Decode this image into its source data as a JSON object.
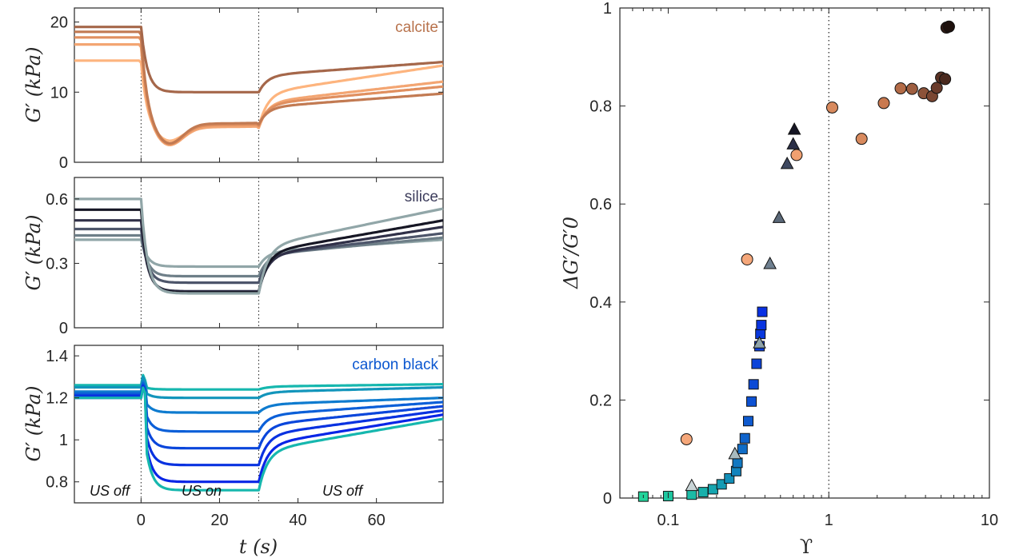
{
  "colors": {
    "calcite": [
      "#FDB47E",
      "#F3A572",
      "#E08F5F",
      "#C27A52",
      "#A5674A"
    ],
    "silice": [
      "#91A6A8",
      "#6E7F88",
      "#4D556A",
      "#303048",
      "#161624"
    ],
    "carbon": [
      "#16B7AE",
      "#1295BB",
      "#0E7BCF",
      "#0B5FD8",
      "#0A46DB",
      "#0932E0",
      "#0825E6"
    ],
    "calcite_title": "#B8734D",
    "silice_title": "#3D3D5C",
    "carbon_title": "#0B57D0"
  },
  "chart_data": [
    {
      "type": "line",
      "panel": "calcite",
      "title": "calcite",
      "ylabel": "G′ (kPa)",
      "xlim": [
        -17,
        77
      ],
      "ylim": [
        0,
        22
      ],
      "yticks": [
        0,
        10,
        20
      ],
      "xticks": [
        0,
        20,
        40,
        60
      ],
      "series": [
        {
          "pre": 14.5,
          "on": 5.0,
          "post_start": 5.2,
          "post_end": 13.8
        },
        {
          "pre": 16.8,
          "on": 4.9,
          "post_start": 5.1,
          "post_end": 11.5
        },
        {
          "pre": 17.8,
          "on": 5.2,
          "post_start": 5.4,
          "post_end": 10.8
        },
        {
          "pre": 18.6,
          "on": 5.4,
          "post_start": 5.6,
          "post_end": 9.8
        },
        {
          "pre": 19.3,
          "on": 10.0,
          "post_start": 10.2,
          "post_end": 14.3
        }
      ]
    },
    {
      "type": "line",
      "panel": "silice",
      "title": "silice",
      "ylabel": "G′ (kPa)",
      "xlim": [
        -17,
        77
      ],
      "ylim": [
        0,
        0.7
      ],
      "yticks": [
        "0",
        "0.3",
        "0.6"
      ],
      "series": [
        {
          "pre": 0.41,
          "on": 0.285,
          "post_end": 0.41
        },
        {
          "pre": 0.43,
          "on": 0.24,
          "post_end": 0.42
        },
        {
          "pre": 0.46,
          "on": 0.21,
          "post_end": 0.44
        },
        {
          "pre": 0.5,
          "on": 0.17,
          "post_end": 0.47
        },
        {
          "pre": 0.55,
          "on": 0.165,
          "post_end": 0.5
        },
        {
          "pre": 0.6,
          "on": 0.16,
          "post_end": 0.555
        }
      ]
    },
    {
      "type": "line",
      "panel": "carbon black",
      "title": "carbon black",
      "ylabel": "G′ (kPa)",
      "xlabel": "t (s)",
      "xlim": [
        -17,
        77
      ],
      "ylim": [
        0.7,
        1.45
      ],
      "yticks": [
        "0.8",
        "1",
        "1.2",
        "1.4"
      ],
      "xticks": [
        "0",
        "20",
        "40",
        "60"
      ],
      "annotations": [
        "US off",
        "US on",
        "US off"
      ],
      "series": [
        {
          "pre": 1.26,
          "on": 1.24,
          "post_end": 1.265
        },
        {
          "pre": 1.25,
          "on": 1.2,
          "post_end": 1.25
        },
        {
          "pre": 1.23,
          "on": 1.13,
          "post_end": 1.2
        },
        {
          "pre": 1.22,
          "on": 1.04,
          "post_end": 1.18
        },
        {
          "pre": 1.21,
          "on": 0.96,
          "post_end": 1.16
        },
        {
          "pre": 1.21,
          "on": 0.88,
          "post_end": 1.14
        },
        {
          "pre": 1.2,
          "on": 0.8,
          "post_end": 1.12
        },
        {
          "pre": 1.2,
          "on": 0.76,
          "post_end": 1.1
        }
      ]
    },
    {
      "type": "scatter",
      "panel": "master",
      "ylabel": "ΔG′/G′0",
      "xlabel": "ϒ",
      "xscale": "log",
      "xlim": [
        0.05,
        10
      ],
      "ylim": [
        0,
        1
      ],
      "yticks": [
        "0",
        "0.2",
        "0.4",
        "0.6",
        "0.8",
        "1"
      ],
      "xticks": [
        "0.1",
        "1",
        "10"
      ],
      "vline": 1,
      "circles": [
        {
          "x": 0.13,
          "y": 0.12,
          "c": "#F5A77A"
        },
        {
          "x": 0.31,
          "y": 0.487,
          "c": "#F5A77A"
        },
        {
          "x": 0.63,
          "y": 0.7,
          "c": "#F0A070"
        },
        {
          "x": 1.05,
          "y": 0.797,
          "c": "#D88A5E"
        },
        {
          "x": 1.6,
          "y": 0.733,
          "c": "#D88A5E"
        },
        {
          "x": 2.2,
          "y": 0.806,
          "c": "#C9794F"
        },
        {
          "x": 2.8,
          "y": 0.836,
          "c": "#B36B47"
        },
        {
          "x": 3.3,
          "y": 0.835,
          "c": "#9E5E40"
        },
        {
          "x": 3.9,
          "y": 0.826,
          "c": "#8C5239"
        },
        {
          "x": 4.4,
          "y": 0.82,
          "c": "#7A4632"
        },
        {
          "x": 4.7,
          "y": 0.837,
          "c": "#6A3B2B"
        },
        {
          "x": 5.0,
          "y": 0.858,
          "c": "#5A3224"
        },
        {
          "x": 5.3,
          "y": 0.855,
          "c": "#4A291E"
        },
        {
          "x": 5.4,
          "y": 0.96,
          "c": "#2F1A14"
        },
        {
          "x": 5.6,
          "y": 0.962,
          "c": "#1E110D"
        }
      ],
      "triangles": [
        {
          "x": 0.14,
          "y": 0.025,
          "c": "#C8D4D6"
        },
        {
          "x": 0.26,
          "y": 0.09,
          "c": "#A8BABE"
        },
        {
          "x": 0.37,
          "y": 0.316,
          "c": "#8FA3A8"
        },
        {
          "x": 0.43,
          "y": 0.478,
          "c": "#6F8090"
        },
        {
          "x": 0.49,
          "y": 0.572,
          "c": "#5A6878"
        },
        {
          "x": 0.55,
          "y": 0.682,
          "c": "#3E4860"
        },
        {
          "x": 0.6,
          "y": 0.722,
          "c": "#2B2F48"
        },
        {
          "x": 0.61,
          "y": 0.752,
          "c": "#161624"
        }
      ],
      "squares": [
        {
          "x": 0.07,
          "y": 0.003,
          "c": "#22D39A"
        },
        {
          "x": 0.1,
          "y": 0.004,
          "c": "#1EC7A0"
        },
        {
          "x": 0.14,
          "y": 0.007,
          "c": "#1BBBA6"
        },
        {
          "x": 0.165,
          "y": 0.012,
          "c": "#18B0AB"
        },
        {
          "x": 0.19,
          "y": 0.018,
          "c": "#16A6B0"
        },
        {
          "x": 0.215,
          "y": 0.028,
          "c": "#159BB4"
        },
        {
          "x": 0.24,
          "y": 0.04,
          "c": "#138FB8"
        },
        {
          "x": 0.265,
          "y": 0.055,
          "c": "#1284BD"
        },
        {
          "x": 0.27,
          "y": 0.072,
          "c": "#1178C2"
        },
        {
          "x": 0.29,
          "y": 0.1,
          "c": "#106DC7"
        },
        {
          "x": 0.3,
          "y": 0.122,
          "c": "#0F63CB"
        },
        {
          "x": 0.315,
          "y": 0.157,
          "c": "#0E5ACF"
        },
        {
          "x": 0.33,
          "y": 0.197,
          "c": "#0D52D3"
        },
        {
          "x": 0.34,
          "y": 0.232,
          "c": "#0C4AD6"
        },
        {
          "x": 0.355,
          "y": 0.274,
          "c": "#0B43D9"
        },
        {
          "x": 0.37,
          "y": 0.31,
          "c": "#0A3DDC"
        },
        {
          "x": 0.375,
          "y": 0.335,
          "c": "#0938DE"
        },
        {
          "x": 0.38,
          "y": 0.353,
          "c": "#0934E0"
        },
        {
          "x": 0.385,
          "y": 0.38,
          "c": "#0830E3"
        }
      ]
    }
  ]
}
